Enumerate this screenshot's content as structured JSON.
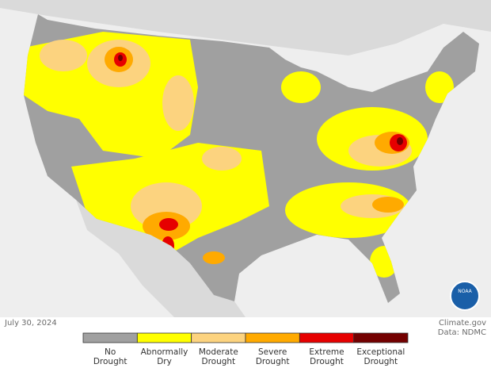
{
  "date": "July 30, 2024",
  "source": "Climate.gov",
  "data_credit": "Data: NDMC",
  "logo": "NOAA",
  "legend": [
    {
      "lines": [
        "No",
        "Drought"
      ],
      "color": "#a0a0a0"
    },
    {
      "lines": [
        "Abnormally",
        "Dry"
      ],
      "color": "#ffff00"
    },
    {
      "lines": [
        "Moderate",
        "Drought"
      ],
      "color": "#fcd37f"
    },
    {
      "lines": [
        "Severe",
        "Drought"
      ],
      "color": "#ffaa00"
    },
    {
      "lines": [
        "Extreme",
        "Drought"
      ],
      "color": "#e60000"
    },
    {
      "lines": [
        "Exceptional",
        "Drought"
      ],
      "color": "#730000"
    }
  ]
}
